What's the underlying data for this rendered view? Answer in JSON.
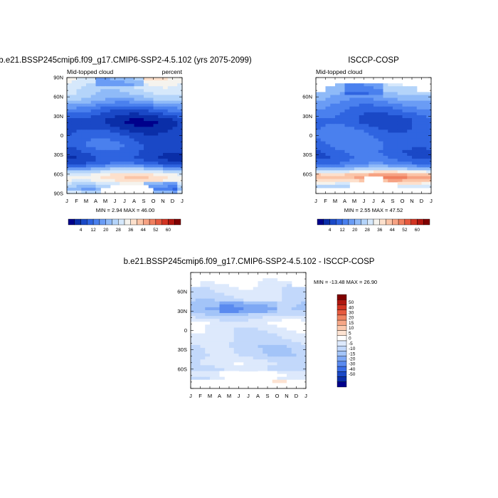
{
  "colors": {
    "scale": [
      "#00008b",
      "#0a2ea8",
      "#1a48c6",
      "#2f64e0",
      "#4a80ee",
      "#6a9cf5",
      "#8fbaf8",
      "#b4d4fa",
      "#d6e8fb",
      "#f5f3ee",
      "#fde0cc",
      "#fbc5a8",
      "#f6a283",
      "#f07f5f",
      "#e65a3f",
      "#d23422",
      "#b0160f",
      "#800000"
    ],
    "diff_scale": [
      "#00008b",
      "#0a2ea8",
      "#1a48c6",
      "#3a6de6",
      "#5a8aef",
      "#7ea8f4",
      "#a3c4f8",
      "#c2d8fb",
      "#dde9fc",
      "#ffffff",
      "#fde3d2",
      "#fbc9ae",
      "#f6a787",
      "#ef8361",
      "#e65a3f",
      "#d23422",
      "#b0160f",
      "#800000"
    ]
  },
  "chart_data": [
    {
      "type": "heatmap",
      "title": "b.e21.BSSP245cmip6.f09_g17.CMIP6-SSP2-4.5.102 (yrs 2075-2099)",
      "left_label": "Mid-topped cloud",
      "right_label": "percent",
      "x_ticks": [
        "J",
        "F",
        "M",
        "A",
        "M",
        "J",
        "J",
        "A",
        "S",
        "O",
        "N",
        "D",
        "J"
      ],
      "y_ticks": [
        "90N",
        "60N",
        "30N",
        "0",
        "30S",
        "60S",
        "90S"
      ],
      "ylim": [
        -90,
        90
      ],
      "stats_text": "MIN =   2.94 MAX =  46.00",
      "min": 2.94,
      "max": 46.0
    },
    {
      "type": "heatmap",
      "title": "ISCCP-COSP",
      "left_label": "Mid-topped cloud",
      "right_label": "",
      "x_ticks": [
        "J",
        "F",
        "M",
        "A",
        "M",
        "J",
        "J",
        "A",
        "S",
        "O",
        "N",
        "D",
        "J"
      ],
      "y_ticks": [
        "60N",
        "30N",
        "0",
        "30S",
        "60S"
      ],
      "ylim": [
        -90,
        90
      ],
      "stats_text": "MIN =   2.55 MAX =  47.52",
      "min": 2.55,
      "max": 47.52
    },
    {
      "type": "heatmap",
      "title": "b.e21.BSSP245cmip6.f09_g17.CMIP6-SSP2-4.5.102 - ISCCP-COSP",
      "x_ticks": [
        "J",
        "F",
        "M",
        "A",
        "M",
        "J",
        "J",
        "A",
        "S",
        "O",
        "N",
        "D",
        "J"
      ],
      "y_ticks": [
        "60N",
        "30N",
        "0",
        "30S",
        "60S"
      ],
      "ylim": [
        -90,
        90
      ],
      "stats_text": "MIN = -13.48 MAX =  26.90",
      "min": -13.48,
      "max": 26.9
    }
  ],
  "colorbar": {
    "labels": [
      "4",
      "12",
      "20",
      "28",
      "36",
      "44",
      "52",
      "60"
    ]
  },
  "diff_colorbar": {
    "labels": [
      "50",
      "40",
      "30",
      "20",
      "15",
      "10",
      "5",
      "0",
      "-5",
      "-10",
      "-15",
      "-20",
      "-30",
      "-40",
      "-50"
    ]
  }
}
